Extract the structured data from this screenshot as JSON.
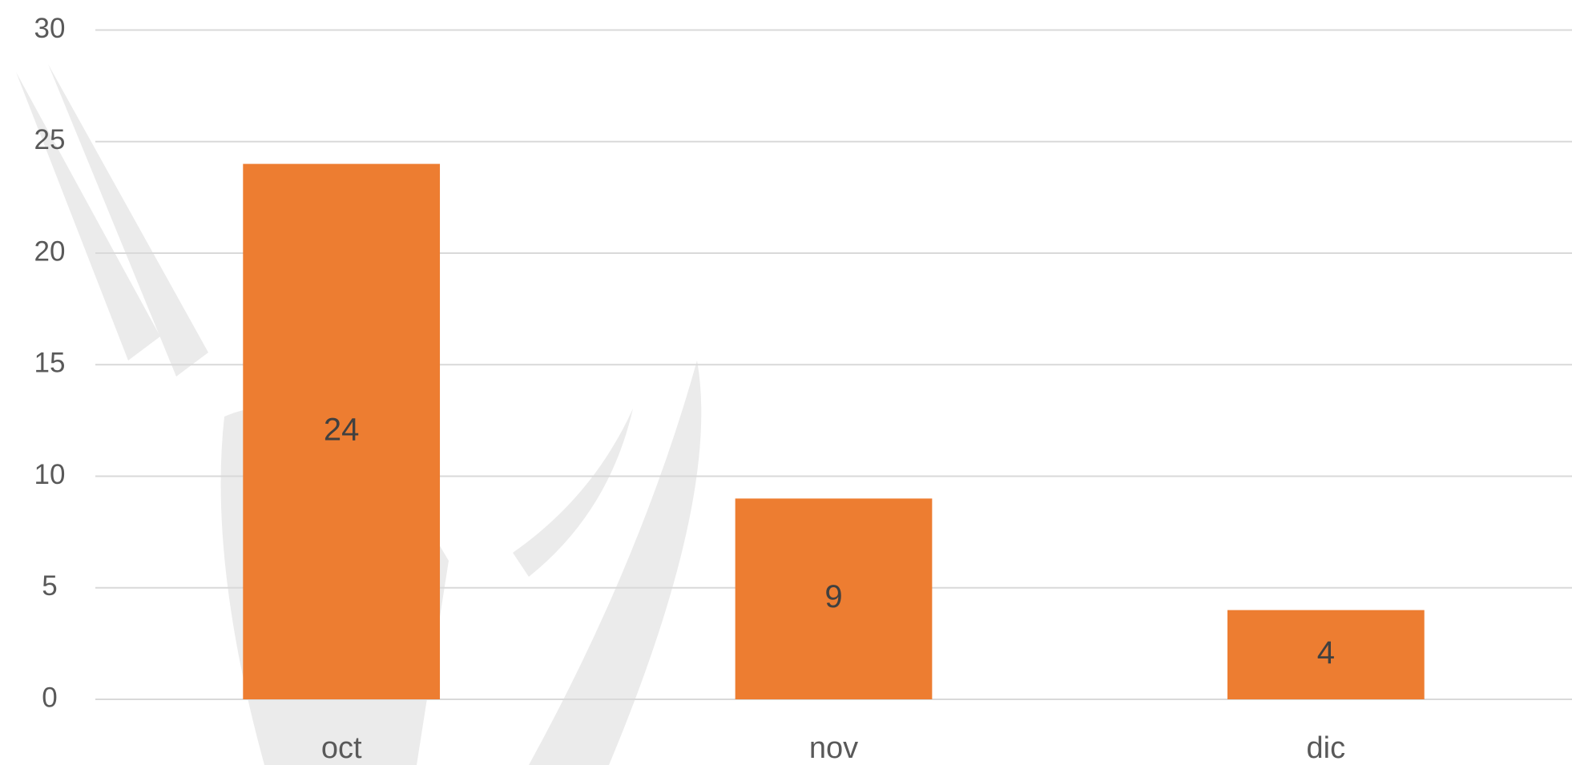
{
  "chart_data": {
    "type": "bar",
    "categories": [
      "oct",
      "nov",
      "dic"
    ],
    "values": [
      24,
      9,
      4
    ],
    "color": "#ed7d31",
    "ylim": [
      0,
      30
    ],
    "yticks": [
      0,
      5,
      10,
      15,
      20,
      25,
      30
    ],
    "grid": true
  }
}
